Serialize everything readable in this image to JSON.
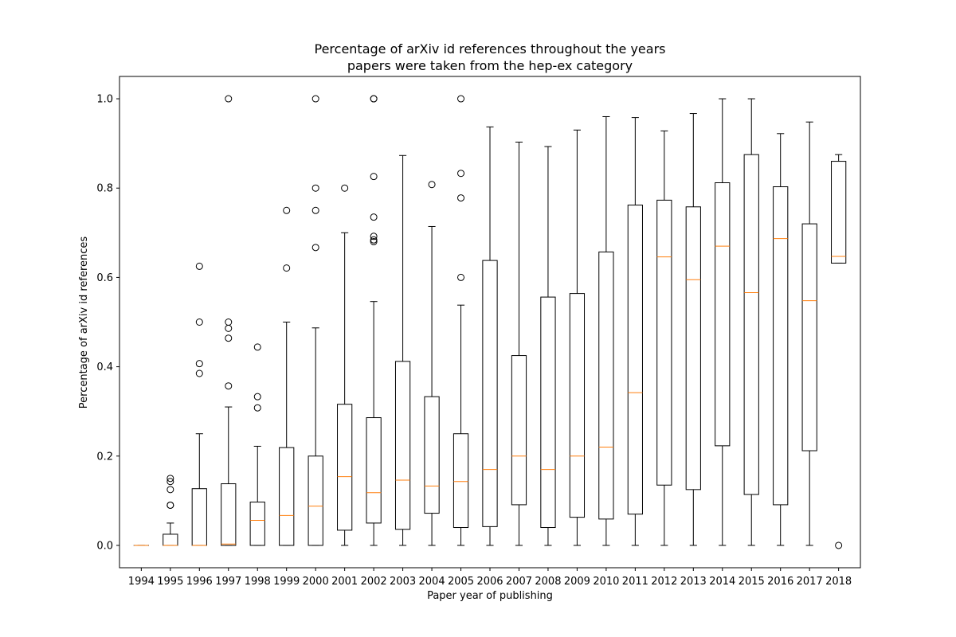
{
  "chart_data": {
    "type": "box",
    "title": "Percentage of arXiv id references throughout the years",
    "subtitle": "papers were taken from the hep-ex category",
    "xlabel": "Paper year of publishing",
    "ylabel": "Percentage of arXiv id references",
    "ylim": [
      -0.05,
      1.05
    ],
    "yticks": [
      0.0,
      0.2,
      0.4,
      0.6,
      0.8,
      1.0
    ],
    "ytick_labels": [
      "0.0",
      "0.2",
      "0.4",
      "0.6",
      "0.8",
      "1.0"
    ],
    "grid": false,
    "colors": {
      "box": "#000000",
      "median": "#ff7f0e",
      "background": "#ffffff"
    },
    "categories": [
      "1994",
      "1995",
      "1996",
      "1997",
      "1998",
      "1999",
      "2000",
      "2001",
      "2002",
      "2003",
      "2004",
      "2005",
      "2006",
      "2007",
      "2008",
      "2009",
      "2010",
      "2011",
      "2012",
      "2013",
      "2014",
      "2015",
      "2016",
      "2017",
      "2018"
    ],
    "boxes": [
      {
        "year": "1994",
        "whislo": 0.0,
        "q1": 0.0,
        "med": 0.0,
        "q3": 0.0,
        "whishi": 0.0,
        "fliers": []
      },
      {
        "year": "1995",
        "whislo": 0.0,
        "q1": 0.0,
        "med": 0.0,
        "q3": 0.025,
        "whishi": 0.05,
        "fliers": [
          0.09,
          0.09,
          0.125,
          0.143,
          0.15
        ]
      },
      {
        "year": "1996",
        "whislo": 0.0,
        "q1": 0.0,
        "med": 0.0,
        "q3": 0.127,
        "whishi": 0.25,
        "fliers": [
          0.385,
          0.407,
          0.5,
          0.625
        ]
      },
      {
        "year": "1997",
        "whislo": 0.0,
        "q1": 0.0,
        "med": 0.003,
        "q3": 0.138,
        "whishi": 0.31,
        "fliers": [
          0.357,
          0.464,
          0.486,
          0.5,
          1.0
        ]
      },
      {
        "year": "1998",
        "whislo": 0.0,
        "q1": 0.0,
        "med": 0.056,
        "q3": 0.097,
        "whishi": 0.222,
        "fliers": [
          0.308,
          0.333,
          0.444
        ]
      },
      {
        "year": "1999",
        "whislo": 0.0,
        "q1": 0.0,
        "med": 0.067,
        "q3": 0.219,
        "whishi": 0.5,
        "fliers": [
          0.621,
          0.75
        ]
      },
      {
        "year": "2000",
        "whislo": 0.0,
        "q1": 0.0,
        "med": 0.088,
        "q3": 0.2,
        "whishi": 0.487,
        "fliers": [
          0.667,
          0.75,
          0.8,
          1.0
        ]
      },
      {
        "year": "2001",
        "whislo": 0.0,
        "q1": 0.034,
        "med": 0.154,
        "q3": 0.316,
        "whishi": 0.7,
        "fliers": [
          0.8
        ]
      },
      {
        "year": "2002",
        "whislo": 0.0,
        "q1": 0.05,
        "med": 0.118,
        "q3": 0.286,
        "whishi": 0.546,
        "fliers": [
          0.68,
          0.684,
          0.692,
          0.735,
          0.826,
          1.0,
          1.0
        ]
      },
      {
        "year": "2003",
        "whislo": 0.0,
        "q1": 0.036,
        "med": 0.146,
        "q3": 0.412,
        "whishi": 0.873,
        "fliers": []
      },
      {
        "year": "2004",
        "whislo": 0.0,
        "q1": 0.072,
        "med": 0.133,
        "q3": 0.333,
        "whishi": 0.714,
        "fliers": [
          0.808
        ]
      },
      {
        "year": "2005",
        "whislo": 0.0,
        "q1": 0.04,
        "med": 0.143,
        "q3": 0.25,
        "whishi": 0.538,
        "fliers": [
          0.6,
          0.778,
          0.833,
          1.0
        ]
      },
      {
        "year": "2006",
        "whislo": 0.0,
        "q1": 0.042,
        "med": 0.17,
        "q3": 0.638,
        "whishi": 0.937,
        "fliers": []
      },
      {
        "year": "2007",
        "whislo": 0.0,
        "q1": 0.091,
        "med": 0.2,
        "q3": 0.425,
        "whishi": 0.903,
        "fliers": []
      },
      {
        "year": "2008",
        "whislo": 0.0,
        "q1": 0.04,
        "med": 0.17,
        "q3": 0.556,
        "whishi": 0.893,
        "fliers": []
      },
      {
        "year": "2009",
        "whislo": 0.0,
        "q1": 0.063,
        "med": 0.2,
        "q3": 0.564,
        "whishi": 0.93,
        "fliers": []
      },
      {
        "year": "2010",
        "whislo": 0.0,
        "q1": 0.059,
        "med": 0.22,
        "q3": 0.657,
        "whishi": 0.96,
        "fliers": []
      },
      {
        "year": "2011",
        "whislo": 0.0,
        "q1": 0.07,
        "med": 0.342,
        "q3": 0.762,
        "whishi": 0.958,
        "fliers": []
      },
      {
        "year": "2012",
        "whislo": 0.0,
        "q1": 0.135,
        "med": 0.646,
        "q3": 0.773,
        "whishi": 0.928,
        "fliers": []
      },
      {
        "year": "2013",
        "whislo": 0.0,
        "q1": 0.125,
        "med": 0.595,
        "q3": 0.758,
        "whishi": 0.967,
        "fliers": []
      },
      {
        "year": "2014",
        "whislo": 0.0,
        "q1": 0.223,
        "med": 0.67,
        "q3": 0.812,
        "whishi": 1.0,
        "fliers": []
      },
      {
        "year": "2015",
        "whislo": 0.0,
        "q1": 0.114,
        "med": 0.566,
        "q3": 0.875,
        "whishi": 1.0,
        "fliers": []
      },
      {
        "year": "2016",
        "whislo": 0.0,
        "q1": 0.091,
        "med": 0.687,
        "q3": 0.803,
        "whishi": 0.922,
        "fliers": []
      },
      {
        "year": "2017",
        "whislo": 0.0,
        "q1": 0.212,
        "med": 0.548,
        "q3": 0.72,
        "whishi": 0.948,
        "fliers": []
      },
      {
        "year": "2018",
        "whislo": 0.632,
        "q1": 0.632,
        "med": 0.647,
        "q3": 0.86,
        "whishi": 0.875,
        "fliers": [
          0.0
        ]
      }
    ]
  }
}
